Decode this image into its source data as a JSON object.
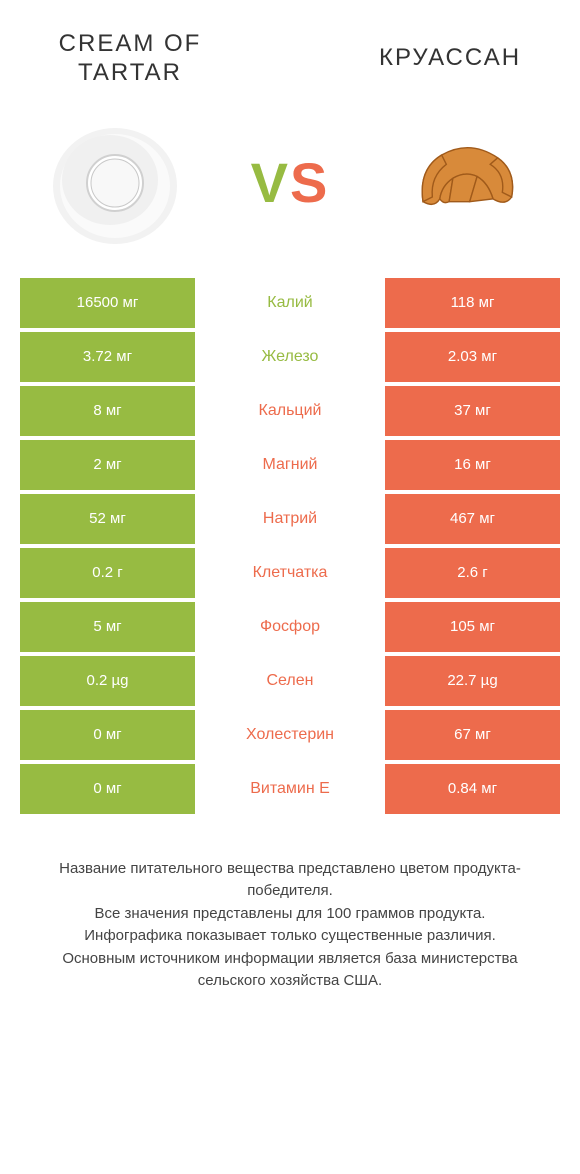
{
  "header": {
    "left_title": "CREAM OF TARTAR",
    "right_title": "КРУАССАН",
    "vs_v": "V",
    "vs_s": "S"
  },
  "colors": {
    "green": "#97bb42",
    "orange": "#ed6b4c",
    "text_dark": "#333333",
    "white": "#ffffff"
  },
  "table": {
    "left_bg": "#97bb42",
    "right_bg": "#ed6b4c",
    "rows": [
      {
        "left": "16500 мг",
        "mid": "Калий",
        "mid_color": "#97bb42",
        "right": "118 мг"
      },
      {
        "left": "3.72 мг",
        "mid": "Железо",
        "mid_color": "#97bb42",
        "right": "2.03 мг"
      },
      {
        "left": "8 мг",
        "mid": "Кальций",
        "mid_color": "#ed6b4c",
        "right": "37 мг"
      },
      {
        "left": "2 мг",
        "mid": "Магний",
        "mid_color": "#ed6b4c",
        "right": "16 мг"
      },
      {
        "left": "52 мг",
        "mid": "Натрий",
        "mid_color": "#ed6b4c",
        "right": "467 мг"
      },
      {
        "left": "0.2 г",
        "mid": "Клетчатка",
        "mid_color": "#ed6b4c",
        "right": "2.6 г"
      },
      {
        "left": "5 мг",
        "mid": "Фосфор",
        "mid_color": "#ed6b4c",
        "right": "105 мг"
      },
      {
        "left": "0.2 µg",
        "mid": "Селен",
        "mid_color": "#ed6b4c",
        "right": "22.7 µg"
      },
      {
        "left": "0 мг",
        "mid": "Холестерин",
        "mid_color": "#ed6b4c",
        "right": "67 мг"
      },
      {
        "left": "0 мг",
        "mid": "Витамин E",
        "mid_color": "#ed6b4c",
        "right": "0.84 мг"
      }
    ]
  },
  "footer": {
    "line1": "Название питательного вещества представлено цветом продукта-победителя.",
    "line2": "Все значения представлены для 100 граммов продукта.",
    "line3": "Инфографика показывает только существенные различия.",
    "line4": "Основным источником информации является база министерства сельского хозяйства США."
  }
}
